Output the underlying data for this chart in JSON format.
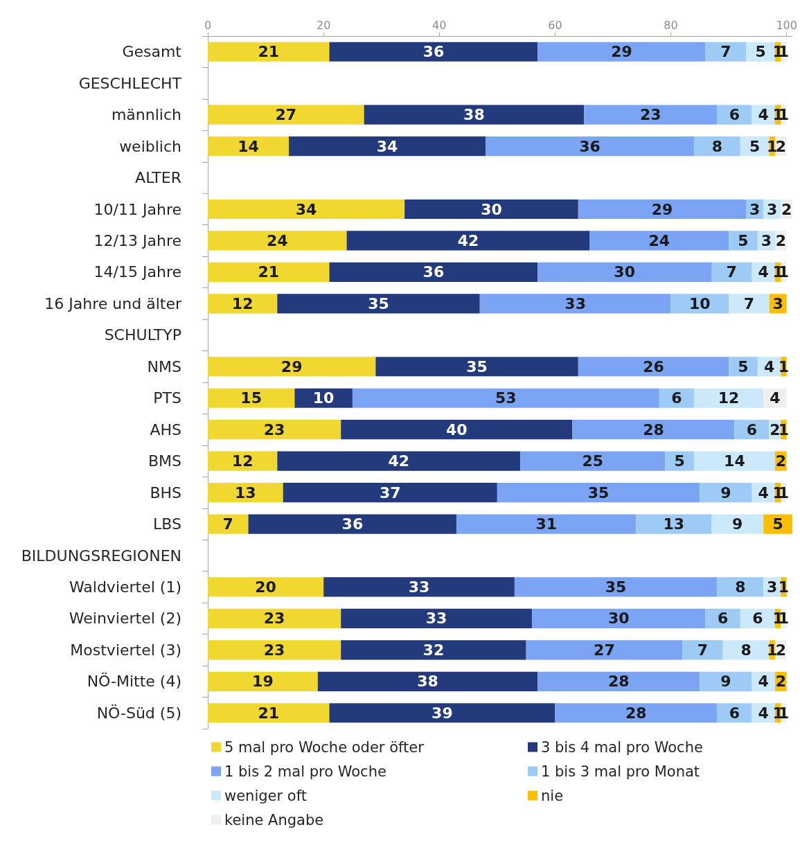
{
  "chart_data": {
    "type": "bar",
    "orientation": "horizontal",
    "stacked": true,
    "data_labels": true,
    "grid": false,
    "legend": "bottom",
    "categories": [
      "Gesamt",
      "GESCHLECHT",
      "männlich",
      "weiblich",
      "ALTER",
      "10/11 Jahre",
      "12/13 Jahre",
      "14/15 Jahre",
      "16 Jahre und älter",
      "SCHULTYP",
      "NMS",
      "PTS",
      "AHS",
      "BMS",
      "BHS",
      "LBS",
      "BILDUNGSREGIONEN",
      "Waldviertel (1)",
      "Weinviertel (2)",
      "Mostviertel (3)",
      "NÖ-Mitte (4)",
      "NÖ-Süd (5)"
    ],
    "xlim": [
      0,
      101
    ],
    "xticks": [
      0,
      20,
      40,
      60,
      80,
      100
    ],
    "series": [
      {
        "name": "5 mal pro Woche oder öfter",
        "color": "#f0d830",
        "values": [
          21,
          null,
          27,
          14,
          null,
          34,
          24,
          21,
          12,
          null,
          29,
          15,
          23,
          12,
          13,
          7,
          null,
          20,
          23,
          23,
          19,
          21
        ]
      },
      {
        "name": "3 bis 4 mal pro Woche",
        "color": "#233a7d",
        "values": [
          36,
          null,
          38,
          34,
          null,
          30,
          42,
          36,
          35,
          null,
          35,
          10,
          40,
          42,
          37,
          36,
          null,
          33,
          33,
          32,
          38,
          39
        ]
      },
      {
        "name": "1 bis 2 mal pro Woche",
        "color": "#7ba4f5",
        "values": [
          29,
          null,
          23,
          36,
          null,
          29,
          24,
          30,
          33,
          null,
          26,
          53,
          28,
          25,
          35,
          31,
          null,
          35,
          30,
          27,
          28,
          28
        ]
      },
      {
        "name": "1 bis 3 mal pro Monat",
        "color": "#9ecbf5",
        "values": [
          7,
          null,
          6,
          8,
          null,
          3,
          5,
          7,
          10,
          null,
          5,
          6,
          6,
          5,
          9,
          13,
          null,
          8,
          6,
          7,
          9,
          6
        ]
      },
      {
        "name": "weniger oft",
        "color": "#cce9fb",
        "values": [
          5,
          null,
          4,
          5,
          null,
          3,
          3,
          4,
          7,
          null,
          4,
          12,
          2,
          14,
          4,
          9,
          null,
          3,
          6,
          8,
          4,
          4
        ]
      },
      {
        "name": "nie",
        "color": "#fbbf00",
        "values": [
          1,
          null,
          1,
          1,
          null,
          null,
          null,
          1,
          3,
          null,
          1,
          null,
          1,
          2,
          1,
          5,
          null,
          1,
          1,
          1,
          2,
          1
        ]
      },
      {
        "name": "keine Angabe",
        "color": "#efefef",
        "values": [
          1,
          null,
          1,
          2,
          null,
          2,
          2,
          1,
          null,
          null,
          null,
          4,
          null,
          null,
          1,
          null,
          null,
          null,
          1,
          2,
          null,
          1
        ]
      }
    ]
  }
}
